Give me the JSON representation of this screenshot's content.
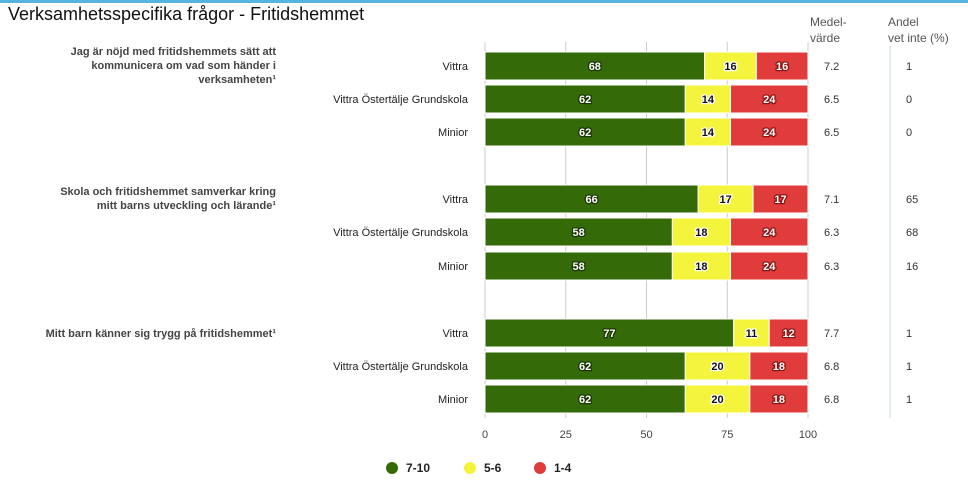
{
  "page_title": "Verksamhetsspecifika frågor - Fritidshemmet",
  "headers": {
    "mean": [
      "Medel-",
      "värde"
    ],
    "dont_know": [
      "Andel",
      "vet inte (%)"
    ]
  },
  "colors": {
    "high": "#356a08",
    "mid": "#f4f43c",
    "low": "#e03c3c",
    "grid": "#cccccc",
    "rule": "#56b4e0"
  },
  "chart_data": {
    "type": "bar",
    "orientation": "horizontal",
    "stacked": true,
    "xlim": [
      0,
      100
    ],
    "xticks": [
      "0",
      "25",
      "50",
      "75",
      "100"
    ],
    "legend_position": "bottom",
    "series": [
      {
        "key": "high",
        "name": "7-10"
      },
      {
        "key": "mid",
        "name": "5-6"
      },
      {
        "key": "low",
        "name": "1-4"
      }
    ],
    "questions": [
      {
        "text": [
          "Jag är nöjd med fritidshemmets sätt att",
          "kommunicera om vad som händer i",
          "verksamheten¹"
        ],
        "rows": [
          {
            "label": "Vittra",
            "values": [
              68,
              16,
              16
            ],
            "mean": "7.2",
            "dont_know": "1"
          },
          {
            "label": "Vittra Östertälje Grundskola",
            "values": [
              62,
              14,
              24
            ],
            "mean": "6.5",
            "dont_know": "0"
          },
          {
            "label": "Minior",
            "values": [
              62,
              14,
              24
            ],
            "mean": "6.5",
            "dont_know": "0"
          }
        ]
      },
      {
        "text": [
          "Skola och fritidshemmet samverkar kring",
          "mitt barns utveckling och lärande¹"
        ],
        "rows": [
          {
            "label": "Vittra",
            "values": [
              66,
              17,
              17
            ],
            "mean": "7.1",
            "dont_know": "65"
          },
          {
            "label": "Vittra Östertälje Grundskola",
            "values": [
              58,
              18,
              24
            ],
            "mean": "6.3",
            "dont_know": "68"
          },
          {
            "label": "Minior",
            "values": [
              58,
              18,
              24
            ],
            "mean": "6.3",
            "dont_know": "16"
          }
        ]
      },
      {
        "text": [
          "Mitt barn känner sig trygg på fritidshemmet¹"
        ],
        "rows": [
          {
            "label": "Vittra",
            "values": [
              77,
              11,
              12
            ],
            "mean": "7.7",
            "dont_know": "1"
          },
          {
            "label": "Vittra Östertälje Grundskola",
            "values": [
              62,
              20,
              18
            ],
            "mean": "6.8",
            "dont_know": "1"
          },
          {
            "label": "Minior",
            "values": [
              62,
              20,
              18
            ],
            "mean": "6.8",
            "dont_know": "1"
          }
        ]
      }
    ]
  }
}
